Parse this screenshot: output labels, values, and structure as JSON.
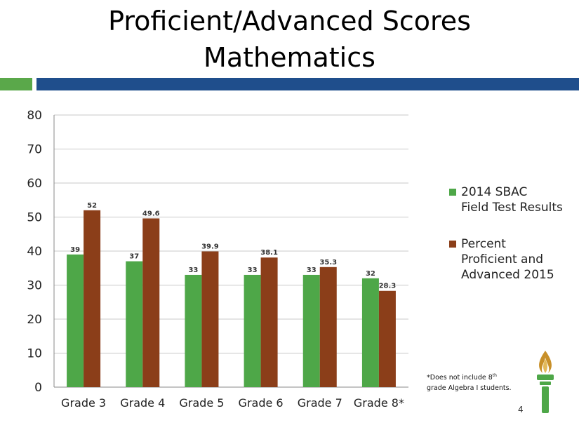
{
  "slide": {
    "title_line1": "Proficient/Advanced Scores",
    "title_line2": "Mathematics",
    "footnote_before": "*Does not include 8",
    "footnote_sup": "th",
    "footnote_after": " grade Algebra I students.",
    "page_number": "4",
    "accent_green": "#5aa84a",
    "accent_blue": "#1f4e8c"
  },
  "chart_data": {
    "type": "bar",
    "categories": [
      "Grade 3",
      "Grade 4",
      "Grade 5",
      "Grade 6",
      "Grade 7",
      "Grade 8*"
    ],
    "series": [
      {
        "name": "2014 SBAC Field Test Results",
        "legend_lines": [
          "2014 SBAC",
          "Field Test Results"
        ],
        "values": [
          39,
          37,
          33,
          33,
          33,
          32
        ],
        "labels": [
          "39",
          "37",
          "33",
          "33",
          "33",
          "32"
        ],
        "color": "#4ea748"
      },
      {
        "name": "Percent Proficient and Advanced 2015",
        "legend_lines": [
          "Percent",
          "Proficient and",
          "Advanced 2015"
        ],
        "values": [
          52,
          49.6,
          39.9,
          38.1,
          35.3,
          28.3
        ],
        "labels": [
          "52",
          "49.6",
          "39.9",
          "38.1",
          "35.3",
          "28.3"
        ],
        "color": "#8b3e19"
      }
    ],
    "yticks": [
      "0",
      "10",
      "20",
      "30",
      "40",
      "50",
      "60",
      "70",
      "80"
    ],
    "ylim": [
      0,
      80
    ],
    "grid": true,
    "legend_position": "right"
  }
}
